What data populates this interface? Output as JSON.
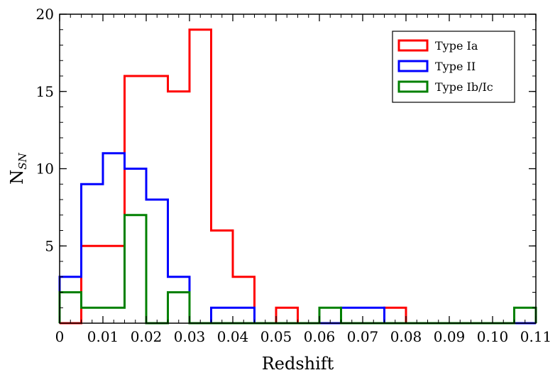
{
  "chart_data": {
    "type": "histogram-step",
    "xlabel": "Redshift",
    "ylabel": "N",
    "ylabel_sub": "SN",
    "xlim": [
      0,
      0.11
    ],
    "ylim": [
      0,
      20
    ],
    "bin_edges": [
      0,
      0.005,
      0.01,
      0.015,
      0.02,
      0.025,
      0.03,
      0.035,
      0.04,
      0.045,
      0.05,
      0.055,
      0.06,
      0.065,
      0.07,
      0.075,
      0.08,
      0.085,
      0.09,
      0.095,
      0.1,
      0.105,
      0.11
    ],
    "x_ticks": [
      {
        "value": 0,
        "label": "0"
      },
      {
        "value": 0.01,
        "label": "0.01"
      },
      {
        "value": 0.02,
        "label": "0.02"
      },
      {
        "value": 0.03,
        "label": "0.03"
      },
      {
        "value": 0.04,
        "label": "0.04"
      },
      {
        "value": 0.05,
        "label": "0.05"
      },
      {
        "value": 0.06,
        "label": "0.06"
      },
      {
        "value": 0.07,
        "label": "0.07"
      },
      {
        "value": 0.08,
        "label": "0.08"
      },
      {
        "value": 0.09,
        "label": "0.09"
      },
      {
        "value": 0.1,
        "label": "0.10"
      },
      {
        "value": 0.11,
        "label": "0.11"
      }
    ],
    "y_ticks": [
      {
        "value": 5,
        "label": "5"
      },
      {
        "value": 10,
        "label": "10"
      },
      {
        "value": 15,
        "label": "15"
      },
      {
        "value": 20,
        "label": "20"
      }
    ],
    "legend_position": "top-right",
    "series": [
      {
        "name": "Type Ia",
        "color": "#ff0000",
        "values": [
          0,
          5,
          5,
          16,
          16,
          15,
          19,
          6,
          3,
          0,
          1,
          0,
          0,
          0,
          0,
          1,
          0,
          0,
          0,
          0,
          0,
          0
        ]
      },
      {
        "name": "Type II",
        "color": "#0000ff",
        "values": [
          3,
          9,
          11,
          10,
          8,
          3,
          0,
          1,
          1,
          0,
          0,
          0,
          0,
          1,
          1,
          0,
          0,
          0,
          0,
          0,
          0,
          0
        ]
      },
      {
        "name": "Type Ib/Ic",
        "color": "#008000",
        "values": [
          2,
          1,
          1,
          7,
          0,
          2,
          0,
          0,
          0,
          0,
          0,
          0,
          1,
          0,
          0,
          0,
          0,
          0,
          0,
          0,
          0,
          1
        ]
      }
    ]
  }
}
